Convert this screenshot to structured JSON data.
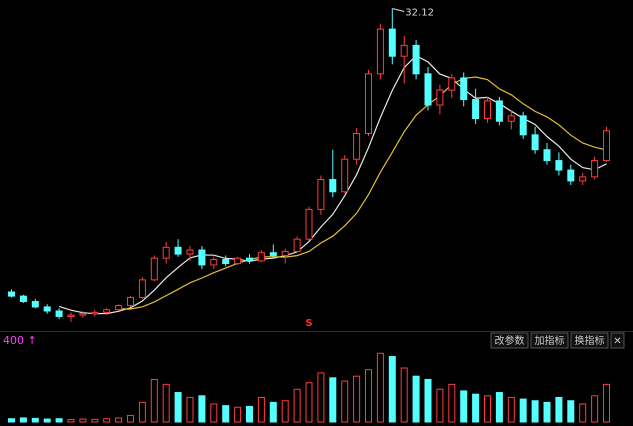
{
  "chart_data": [
    {
      "type": "candlestick",
      "open": [
        11.2,
        10.9,
        10.5,
        10.1,
        9.8,
        9.4,
        9.5,
        9.6,
        9.7,
        9.9,
        10.2,
        10.8,
        12.1,
        13.7,
        14.5,
        14.0,
        14.3,
        13.2,
        13.6,
        13.3,
        13.7,
        13.5,
        14.1,
        13.9,
        14.2,
        15.1,
        17.3,
        19.5,
        18.6,
        21.0,
        22.9,
        27.3,
        30.6,
        28.6,
        29.4,
        27.3,
        25.0,
        26.1,
        27.0,
        25.4,
        24.0,
        25.3,
        23.8,
        24.2,
        22.8,
        21.7,
        20.9,
        20.2,
        19.4,
        19.7,
        20.9
      ],
      "high": [
        11.4,
        11.0,
        10.7,
        10.3,
        10.0,
        9.7,
        9.8,
        9.9,
        10.0,
        10.3,
        10.9,
        12.3,
        13.9,
        14.9,
        15.1,
        14.6,
        14.6,
        13.8,
        13.9,
        13.8,
        14.0,
        14.3,
        14.7,
        14.4,
        15.3,
        17.5,
        19.8,
        21.7,
        21.3,
        23.3,
        27.6,
        31.0,
        32.12,
        30.1,
        29.8,
        27.8,
        26.5,
        27.3,
        27.4,
        26.2,
        25.6,
        25.6,
        24.6,
        24.5,
        23.4,
        22.2,
        21.5,
        20.6,
        20.0,
        21.2,
        23.4
      ],
      "low": [
        10.8,
        10.4,
        10.0,
        9.6,
        9.2,
        9.0,
        9.3,
        9.4,
        9.5,
        9.8,
        10.1,
        10.7,
        12.0,
        13.3,
        13.8,
        13.5,
        12.9,
        12.9,
        13.1,
        13.2,
        13.3,
        13.4,
        13.7,
        13.3,
        14.1,
        15.0,
        16.9,
        18.2,
        18.5,
        20.6,
        22.7,
        26.9,
        28.0,
        26.6,
        26.9,
        24.6,
        24.3,
        25.5,
        24.9,
        23.6,
        23.7,
        23.5,
        23.2,
        22.5,
        21.4,
        20.6,
        19.8,
        19.1,
        19.1,
        19.5,
        20.8
      ],
      "close": [
        10.9,
        10.5,
        10.1,
        9.8,
        9.4,
        9.5,
        9.6,
        9.7,
        9.9,
        10.2,
        10.8,
        12.1,
        13.7,
        14.5,
        14.0,
        14.3,
        13.2,
        13.6,
        13.3,
        13.7,
        13.5,
        14.1,
        13.9,
        14.2,
        15.1,
        17.3,
        19.5,
        18.6,
        21.0,
        22.9,
        27.3,
        30.6,
        28.6,
        29.4,
        27.3,
        25.0,
        26.1,
        27.0,
        25.4,
        24.0,
        25.3,
        23.8,
        24.2,
        22.8,
        21.7,
        20.9,
        20.2,
        19.4,
        19.7,
        20.9,
        23.1
      ],
      "up_color": "#ff3c3c",
      "down_color": "#54ffff",
      "series": [
        {
          "color": "#e8e8e8",
          "values": [
            null,
            null,
            null,
            null,
            10.14,
            9.86,
            9.68,
            9.6,
            9.62,
            9.78,
            10.04,
            10.54,
            11.34,
            12.26,
            13.02,
            13.72,
            13.94,
            13.92,
            13.68,
            13.62,
            13.46,
            13.64,
            13.7,
            13.88,
            14.16,
            14.92,
            16.0,
            16.94,
            18.3,
            19.86,
            21.86,
            24.08,
            26.08,
            27.76,
            28.64,
            28.18,
            27.28,
            26.96,
            26.16,
            25.5,
            25.56,
            25.1,
            24.54,
            24.02,
            23.56,
            22.68,
            21.96,
            21.0,
            20.38,
            20.22,
            20.66
          ]
        },
        {
          "color": "#e0c030",
          "values": [
            null,
            null,
            null,
            null,
            null,
            null,
            null,
            null,
            null,
            9.96,
            9.95,
            10.11,
            10.47,
            10.94,
            11.4,
            11.88,
            12.24,
            12.63,
            12.97,
            13.32,
            13.59,
            13.79,
            13.81,
            13.78,
            13.89,
            14.19,
            14.82,
            15.32,
            16.09,
            17.01,
            18.39,
            20.04,
            21.51,
            23.03,
            24.25,
            25.02,
            25.68,
            26.52,
            26.96,
            27.07,
            26.87,
            26.19,
            25.75,
            25.09,
            24.53,
            24.12,
            23.53,
            22.77,
            22.2,
            21.89,
            21.67
          ]
        }
      ],
      "ylim": [
        8.4,
        32.6
      ],
      "signal": "S"
    },
    {
      "type": "bar",
      "label": "400 ↑",
      "values": [
        20,
        25,
        22,
        18,
        20,
        15,
        18,
        16,
        20,
        25,
        40,
        120,
        260,
        230,
        180,
        150,
        160,
        110,
        100,
        90,
        95,
        150,
        120,
        130,
        200,
        240,
        300,
        270,
        250,
        280,
        320,
        420,
        400,
        330,
        280,
        260,
        200,
        230,
        190,
        170,
        160,
        180,
        150,
        140,
        130,
        120,
        150,
        130,
        110,
        160,
        230
      ],
      "ylim": [
        0,
        440
      ]
    }
  ],
  "toolbar": {
    "buttons": [
      "改参数",
      "加指标",
      "换指标",
      "✕"
    ]
  }
}
